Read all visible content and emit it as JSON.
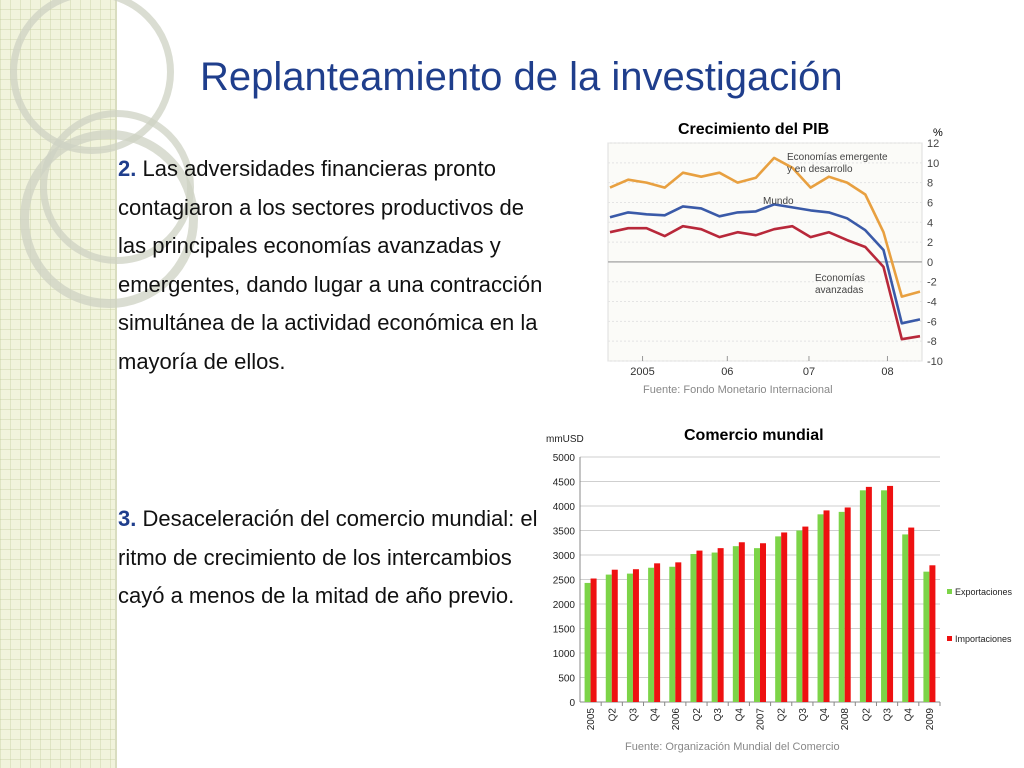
{
  "slide": {
    "title": "Replanteamiento de la investigación",
    "point2": {
      "number": "2.",
      "text": "Las adversidades financieras pronto contagiaron a los sectores productivos de las principales economías avanzadas y emergentes, dando lugar a una contracción simultánea de la actividad económica en la mayoría de ellos."
    },
    "point3": {
      "number": "3.",
      "text": "Desaceleración del comercio mundial: el ritmo de crecimiento de los intercambios cayó a menos de la mitad de año previo."
    }
  },
  "chart_data": [
    {
      "type": "line",
      "title": "Crecimiento del PIB",
      "unit": "%",
      "source": "Fuente: Fondo Monetario Internacional",
      "ylim": [
        -10,
        12
      ],
      "y_ticks": [
        12,
        10,
        8,
        6,
        4,
        2,
        0,
        -2,
        -4,
        -6,
        -8,
        -10
      ],
      "x_labels": [
        "2005",
        "06",
        "07",
        "08"
      ],
      "series": [
        {
          "name": "Economías emergentes y en desarrollo",
          "color": "#e8a040",
          "values": [
            7.5,
            8.3,
            8.0,
            7.5,
            9.0,
            8.6,
            9.0,
            8.0,
            8.5,
            10.5,
            9.5,
            7.5,
            8.6,
            8.0,
            6.8,
            3.0,
            -3.5,
            -3.0
          ]
        },
        {
          "name": "Mundo",
          "color": "#3a5aa8",
          "values": [
            4.5,
            5.0,
            4.8,
            4.7,
            5.6,
            5.4,
            4.6,
            5.0,
            5.1,
            5.8,
            5.5,
            5.2,
            5.0,
            4.4,
            3.2,
            1.2,
            -6.2,
            -5.8
          ]
        },
        {
          "name": "Economías avanzadas",
          "color": "#b8283a",
          "values": [
            3.0,
            3.4,
            3.4,
            2.6,
            3.6,
            3.3,
            2.5,
            3.0,
            2.7,
            3.3,
            3.6,
            2.5,
            3.0,
            2.2,
            1.5,
            -0.5,
            -7.8,
            -7.5
          ]
        }
      ]
    },
    {
      "type": "bar",
      "title": "Comercio mundial",
      "ylabel": "mmUSD",
      "source": "Fuente: Organización Mundial del Comercio",
      "ylim": [
        0,
        5000
      ],
      "y_ticks": [
        0,
        500,
        1000,
        1500,
        2000,
        2500,
        3000,
        3500,
        4000,
        4500,
        5000
      ],
      "categories": [
        "2005",
        "Q2",
        "Q3",
        "Q4",
        "2006",
        "Q2",
        "Q3",
        "Q4",
        "2007",
        "Q2",
        "Q3",
        "Q4",
        "2008",
        "Q2",
        "Q3",
        "Q4",
        "2009"
      ],
      "legend_position": "right",
      "series": [
        {
          "name": "Exportaciones",
          "color": "#7cd448",
          "values": [
            2430,
            2600,
            2620,
            2740,
            2760,
            3020,
            3050,
            3180,
            3140,
            3380,
            3500,
            3830,
            3880,
            4320,
            4320,
            3420,
            2660
          ]
        },
        {
          "name": "Importaciones",
          "color": "#ee1111",
          "values": [
            2520,
            2700,
            2710,
            2830,
            2850,
            3090,
            3140,
            3260,
            3240,
            3460,
            3580,
            3910,
            3970,
            4390,
            4410,
            3560,
            2790
          ]
        }
      ]
    }
  ]
}
